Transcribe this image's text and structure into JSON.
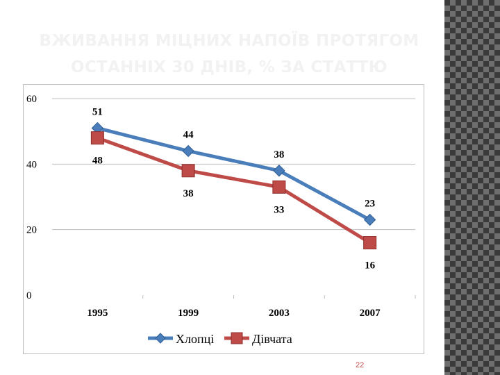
{
  "slide": {
    "title_line1": "ВЖИВАННЯ МІЦНИХ НАПОЇВ ПРОТЯГОМ",
    "title_line2": "ОСТАННІХ 30 ДНІВ, % ЗА СТАТТЮ",
    "page_number": "22"
  },
  "chart_data": {
    "type": "line",
    "categories": [
      "1995",
      "1999",
      "2003",
      "2007"
    ],
    "ylim": [
      0,
      60
    ],
    "yticks": [
      "0",
      "20",
      "40",
      "60"
    ],
    "grid": true,
    "legend_position": "bottom",
    "series": [
      {
        "name": "Хлопці",
        "values": [
          51,
          44,
          38,
          23
        ],
        "color": "#4a7ebb",
        "marker": "diamond",
        "labels": [
          "51",
          "44",
          "38",
          "23"
        ]
      },
      {
        "name": "Дівчата",
        "values": [
          48,
          38,
          33,
          16
        ],
        "color": "#be4b48",
        "marker": "square",
        "labels": [
          "48",
          "38",
          "33",
          "16"
        ]
      }
    ]
  }
}
